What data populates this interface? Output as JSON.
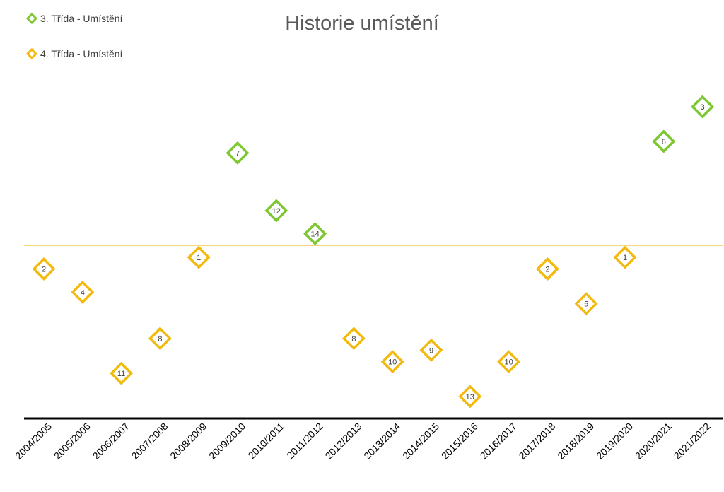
{
  "chart_data": {
    "type": "scatter",
    "title": "Historie umístění",
    "categories": [
      "2004/2005",
      "2005/2006",
      "2006/2007",
      "2007/2008",
      "2008/2009",
      "2009/2010",
      "2010/2011",
      "2011/2012",
      "2012/2013",
      "2013/2014",
      "2014/2015",
      "2015/2016",
      "2016/2017",
      "2017/2018",
      "2018/2019",
      "2019/2020",
      "2020/2021",
      "2021/2022"
    ],
    "series": [
      {
        "name": "3. Třída - Umístění",
        "color": "#7DC832",
        "points": [
          {
            "cat": "2009/2010",
            "rank": 7
          },
          {
            "cat": "2010/2011",
            "rank": 12
          },
          {
            "cat": "2011/2012",
            "rank": 14
          },
          {
            "cat": "2020/2021",
            "rank": 6
          },
          {
            "cat": "2021/2022",
            "rank": 3
          }
        ]
      },
      {
        "name": "4. Třída - Umístění",
        "color": "#F2B90F",
        "points": [
          {
            "cat": "2004/2005",
            "rank": 2
          },
          {
            "cat": "2005/2006",
            "rank": 4
          },
          {
            "cat": "2006/2007",
            "rank": 11
          },
          {
            "cat": "2007/2008",
            "rank": 8
          },
          {
            "cat": "2008/2009",
            "rank": 1
          },
          {
            "cat": "2012/2013",
            "rank": 8
          },
          {
            "cat": "2013/2014",
            "rank": 10
          },
          {
            "cat": "2014/2015",
            "rank": 9
          },
          {
            "cat": "2015/2016",
            "rank": 13
          },
          {
            "cat": "2016/2017",
            "rank": 10
          },
          {
            "cat": "2017/2018",
            "rank": 2
          },
          {
            "cat": "2018/2019",
            "rank": 5
          },
          {
            "cat": "2019/2020",
            "rank": 1
          }
        ]
      }
    ],
    "legend_position": "top-left",
    "grid": false,
    "divider_color": "#F2C94C"
  }
}
